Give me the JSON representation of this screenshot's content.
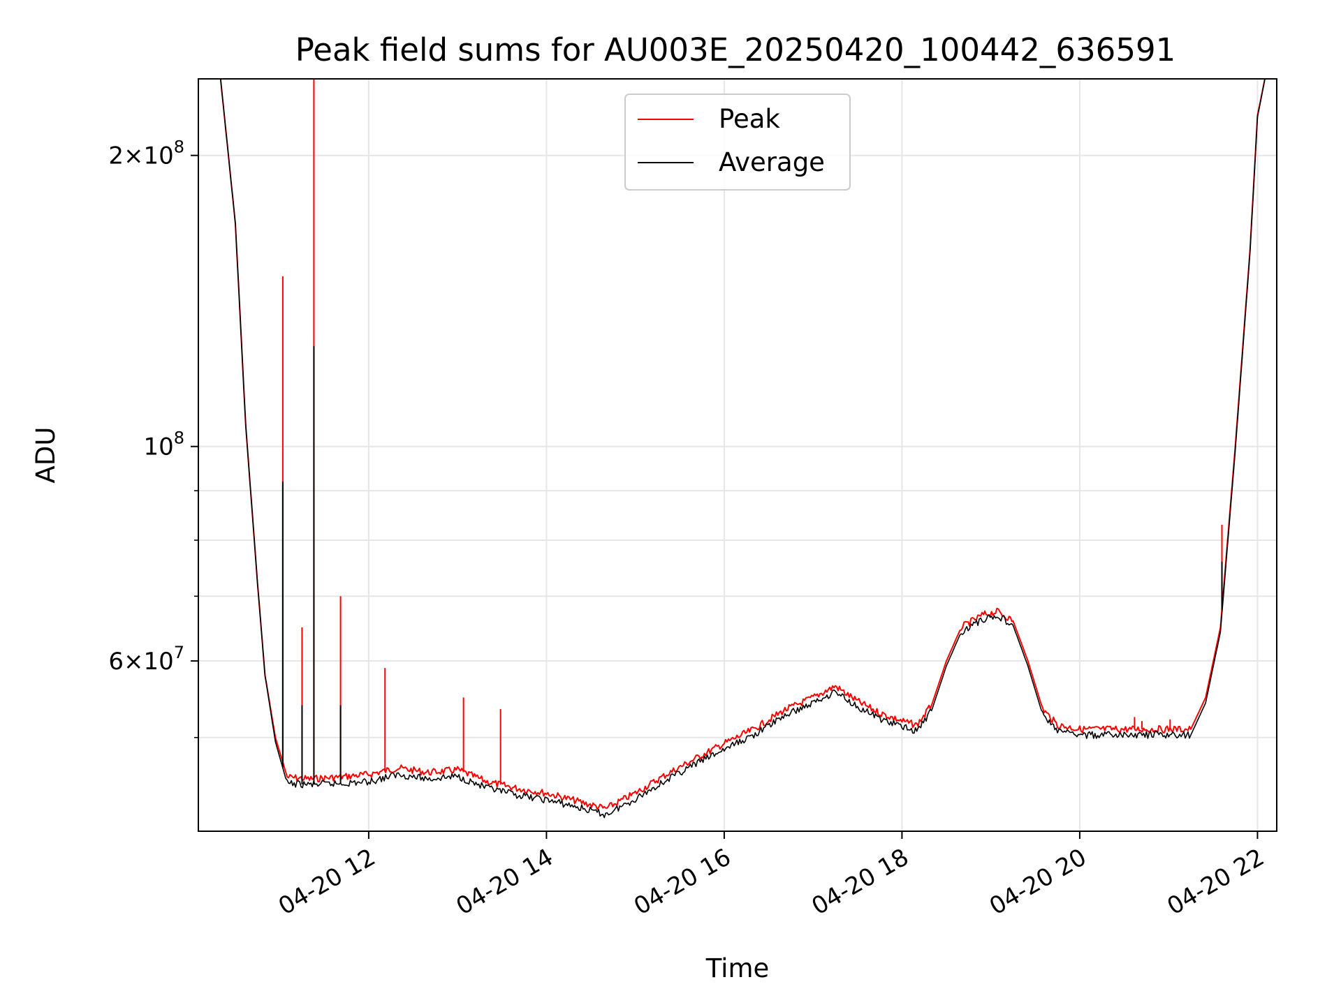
{
  "chart_data": {
    "type": "line",
    "title": "Peak field sums for AU003E_20250420_100442_636591",
    "xlabel": "Time",
    "ylabel": "ADU",
    "y_scale": "log",
    "ylim": [
      40000000,
      240000000
    ],
    "xlim": [
      "2025-04-20 10:05",
      "2025-04-20 22:13"
    ],
    "grid": true,
    "legend_position": "top-center",
    "x_ticks": [
      {
        "value": "2025-04-20 12:00",
        "label": "04-20 12"
      },
      {
        "value": "2025-04-20 14:00",
        "label": "04-20 14"
      },
      {
        "value": "2025-04-20 16:00",
        "label": "04-20 16"
      },
      {
        "value": "2025-04-20 18:00",
        "label": "04-20 18"
      },
      {
        "value": "2025-04-20 20:00",
        "label": "04-20 20"
      },
      {
        "value": "2025-04-20 22:00",
        "label": "04-20 22"
      }
    ],
    "y_ticks": [
      {
        "value": 200000000,
        "mant": "2",
        "exp": "8"
      },
      {
        "value": 100000000,
        "mant": "",
        "exp": "8"
      },
      {
        "value": 60000000,
        "mant": "6",
        "exp": "7"
      }
    ],
    "y_minor_ticks": [
      50000000,
      70000000,
      80000000,
      90000000
    ],
    "x": [
      "2025-04-20 10:05",
      "2025-04-20 10:20",
      "2025-04-20 10:30",
      "2025-04-20 10:37",
      "2025-04-20 10:45",
      "2025-04-20 10:50",
      "2025-04-20 10:57",
      "2025-04-20 11:05",
      "2025-04-20 11:20",
      "2025-04-20 11:40",
      "2025-04-20 12:00",
      "2025-04-20 12:20",
      "2025-04-20 12:40",
      "2025-04-20 13:00",
      "2025-04-20 13:20",
      "2025-04-20 13:40",
      "2025-04-20 14:00",
      "2025-04-20 14:20",
      "2025-04-20 14:40",
      "2025-04-20 15:00",
      "2025-04-20 15:20",
      "2025-04-20 15:40",
      "2025-04-20 16:00",
      "2025-04-20 16:20",
      "2025-04-20 16:40",
      "2025-04-20 17:00",
      "2025-04-20 17:15",
      "2025-04-20 17:30",
      "2025-04-20 17:45",
      "2025-04-20 18:00",
      "2025-04-20 18:10",
      "2025-04-20 18:20",
      "2025-04-20 18:30",
      "2025-04-20 18:40",
      "2025-04-20 18:55",
      "2025-04-20 19:05",
      "2025-04-20 19:15",
      "2025-04-20 19:25",
      "2025-04-20 19:35",
      "2025-04-20 19:45",
      "2025-04-20 20:00",
      "2025-04-20 20:30",
      "2025-04-20 21:00",
      "2025-04-20 21:15",
      "2025-04-20 21:25",
      "2025-04-20 21:35",
      "2025-04-20 21:45",
      "2025-04-20 21:55",
      "2025-04-20 22:00",
      "2025-04-20 22:05",
      "2025-04-20 22:13"
    ],
    "series": [
      {
        "name": "Peak",
        "color": "#ff0000",
        "values": [
          240000000,
          240000000,
          170000000,
          105000000,
          72000000,
          58000000,
          50000000,
          45500000,
          45300000,
          45500000,
          45800000,
          46500000,
          46000000,
          46300000,
          45000000,
          44300000,
          43800000,
          43000000,
          42200000,
          43800000,
          45700000,
          47500000,
          49300000,
          51000000,
          53300000,
          55000000,
          56500000,
          54500000,
          53000000,
          52000000,
          51500000,
          54000000,
          60000000,
          65000000,
          67000000,
          67500000,
          66000000,
          60000000,
          53500000,
          51500000,
          51000000,
          51000000,
          51000000,
          51000000,
          55000000,
          65000000,
          100000000,
          160000000,
          220000000,
          240000000,
          240000000
        ],
        "spikes": [
          {
            "x": "2025-04-20 11:02",
            "y": 150000000
          },
          {
            "x": "2025-04-20 11:15",
            "y": 65000000
          },
          {
            "x": "2025-04-20 11:23",
            "y": 240000000
          },
          {
            "x": "2025-04-20 11:41",
            "y": 70000000
          },
          {
            "x": "2025-04-20 12:11",
            "y": 59000000
          },
          {
            "x": "2025-04-20 13:04",
            "y": 55000000
          },
          {
            "x": "2025-04-20 13:29",
            "y": 53500000
          },
          {
            "x": "2025-04-20 20:37",
            "y": 52500000
          },
          {
            "x": "2025-04-20 20:42",
            "y": 52000000
          },
          {
            "x": "2025-04-20 21:01",
            "y": 52200000
          },
          {
            "x": "2025-04-20 21:36",
            "y": 83000000
          }
        ]
      },
      {
        "name": "Average",
        "color": "#000000",
        "values": [
          240000000,
          240000000,
          170000000,
          105000000,
          72000000,
          58000000,
          49500000,
          44800000,
          44700000,
          44800000,
          45000000,
          45800000,
          45300000,
          45600000,
          44300000,
          43600000,
          43100000,
          42400000,
          41600000,
          43200000,
          45100000,
          46900000,
          48600000,
          50300000,
          52600000,
          54300000,
          55800000,
          53800000,
          52300000,
          51300000,
          50800000,
          53300000,
          59300000,
          64300000,
          66300000,
          66800000,
          65300000,
          59300000,
          52800000,
          50800000,
          50300000,
          50300000,
          50300000,
          50300000,
          54300000,
          64300000,
          99000000,
          159000000,
          219000000,
          240000000,
          240000000
        ],
        "spikes": [
          {
            "x": "2025-04-20 11:02",
            "y": 92000000
          },
          {
            "x": "2025-04-20 11:15",
            "y": 54000000
          },
          {
            "x": "2025-04-20 11:23",
            "y": 127000000
          },
          {
            "x": "2025-04-20 11:41",
            "y": 54000000
          },
          {
            "x": "2025-04-20 21:36",
            "y": 76000000
          }
        ]
      }
    ]
  }
}
